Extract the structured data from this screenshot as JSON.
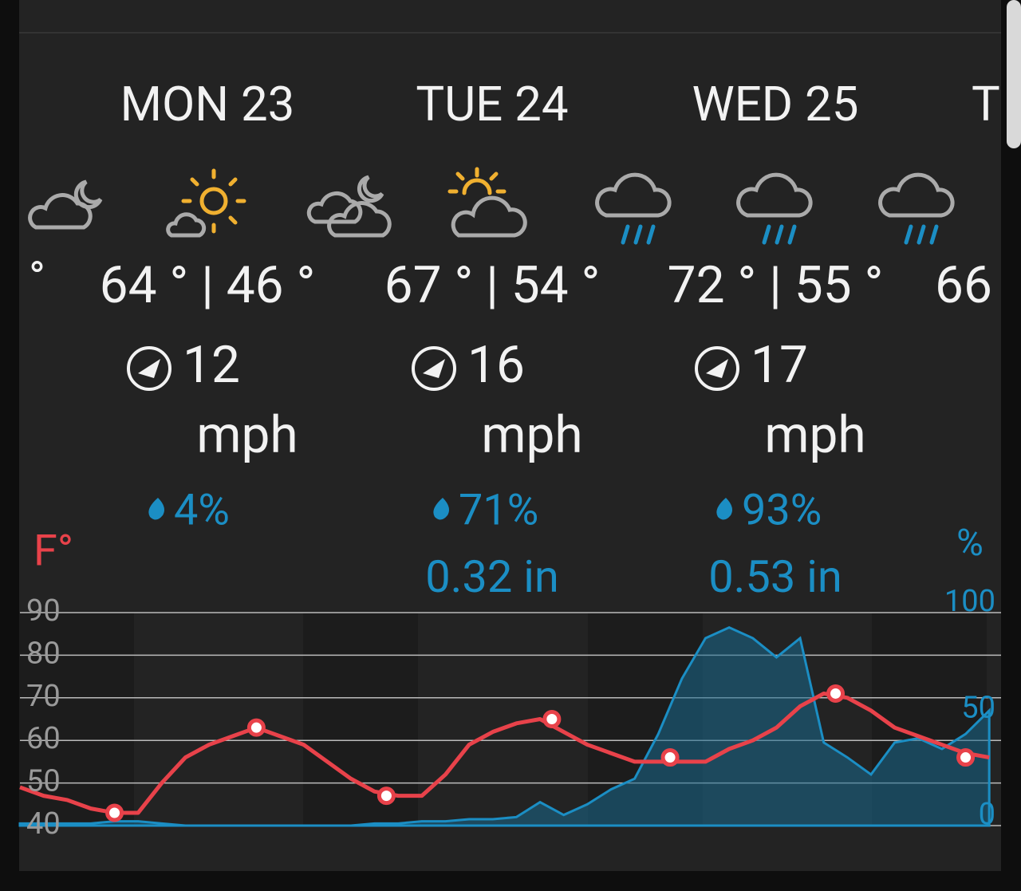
{
  "days": [
    {
      "label": "MON 23",
      "temps": "64 ° | 46 °",
      "wind": "12",
      "wind_unit": "mph",
      "precip_chance": "4%"
    },
    {
      "label": "TUE 24",
      "temps": "67 ° | 54 °",
      "wind": "16",
      "wind_unit": "mph",
      "precip_chance": "71%",
      "precip_amount": "0.32 in"
    },
    {
      "label": "WED 25",
      "temps": "72 ° | 55 °",
      "wind": "17",
      "wind_unit": "mph",
      "precip_chance": "93%",
      "precip_amount": "0.53 in"
    }
  ],
  "partial": {
    "left_temp": "°",
    "right_day": "T",
    "right_temp": "66"
  },
  "chart_data": {
    "type": "line",
    "y_label": "F°",
    "y2_label": "%",
    "x": [
      0,
      2,
      4,
      6,
      8,
      10,
      12,
      14,
      16,
      18,
      20,
      22,
      24,
      26,
      28,
      30,
      32,
      34,
      36,
      38,
      40,
      42,
      44,
      46,
      48,
      50,
      52,
      54,
      56,
      58,
      60,
      62,
      64,
      66,
      68,
      70,
      72,
      74,
      76,
      78,
      80,
      82
    ],
    "xlim": [
      0,
      83
    ],
    "ylim": [
      40,
      90
    ],
    "yticks": [
      40,
      50,
      60,
      70,
      80,
      90
    ],
    "y2lim": [
      0,
      100
    ],
    "y2ticks": [
      0,
      50,
      100
    ],
    "grid": true,
    "series": [
      {
        "color": "#e8424a",
        "values": [
          49,
          47,
          46,
          44,
          43,
          43,
          50,
          56,
          59,
          61,
          63,
          61,
          59,
          55,
          51,
          48,
          47,
          47,
          52,
          59,
          62,
          64,
          65,
          62,
          59,
          57,
          55,
          55,
          55,
          55,
          58,
          60,
          63,
          68,
          71,
          70,
          67,
          63,
          61,
          59,
          57,
          56
        ]
      },
      {
        "color": "#1a6a8e",
        "axis": "y2",
        "values": [
          1,
          1,
          1,
          1,
          2,
          2,
          1,
          0,
          0,
          0,
          0,
          0,
          0,
          0,
          0,
          1,
          1,
          2,
          2,
          3,
          3,
          4,
          11,
          5,
          10,
          17,
          22,
          43,
          69,
          88,
          93,
          88,
          79,
          88,
          39,
          32,
          24,
          39,
          41,
          36,
          43,
          54
        ]
      },
      {
        "color": "#e8424a",
        "x": [
          8,
          20,
          31,
          45,
          55,
          69,
          80
        ],
        "values": [
          43,
          63,
          47,
          65,
          56,
          71,
          56
        ]
      }
    ]
  }
}
